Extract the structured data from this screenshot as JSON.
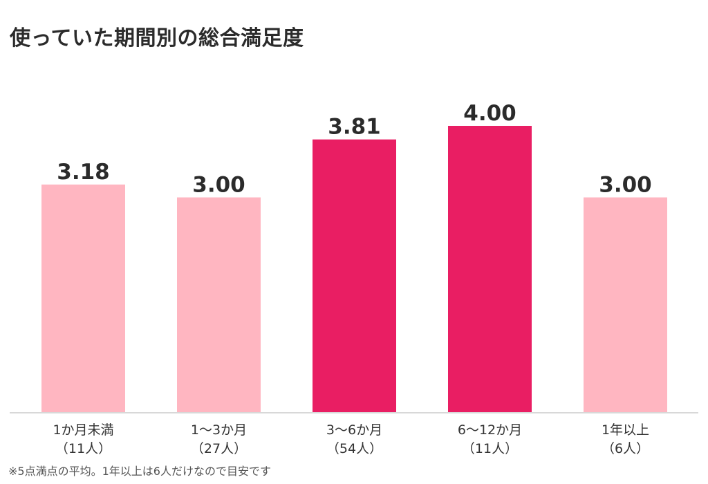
{
  "chart_data": {
    "type": "bar",
    "title": "使っていた期間別の総合満足度",
    "categories": [
      "1か月未満",
      "1〜3か月",
      "3〜6か月",
      "6〜12か月",
      "1年以上"
    ],
    "sublabels": [
      "（11人）",
      "（27人）",
      "（54人）",
      "（11人）",
      "（6人）"
    ],
    "values": [
      3.18,
      3.0,
      3.81,
      4.0,
      3.0
    ],
    "value_labels": [
      "3.18",
      "3.00",
      "3.81",
      "4.00",
      "3.00"
    ],
    "highlight": [
      false,
      false,
      true,
      true,
      false
    ],
    "ylim": [
      0,
      5
    ],
    "grid": false,
    "colors": {
      "bar": "#ffb6c1",
      "bar_highlight": "#e91e63",
      "axis": "#d8d8d8",
      "value_text": "#2b2b2b",
      "tick_text": "#333333"
    },
    "note": "※5点満点の平均。1年以上は6人だけなので目安です"
  }
}
